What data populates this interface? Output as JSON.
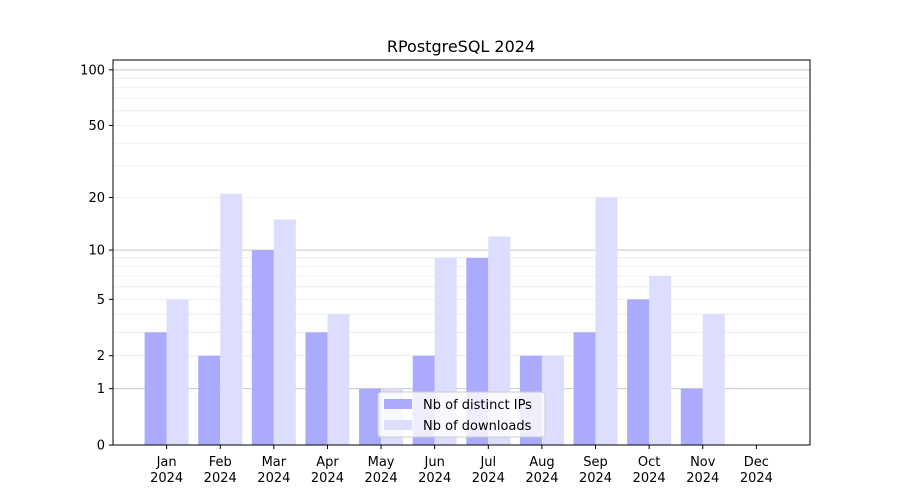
{
  "chart_data": {
    "type": "bar",
    "title": "RPostgreSQL 2024",
    "xlabel": "",
    "ylabel": "",
    "yscale": "log10(1+y)",
    "ylim": [
      0,
      113
    ],
    "yticks": [
      0,
      1,
      2,
      5,
      10,
      20,
      50,
      100
    ],
    "categories": [
      "Jan\n2024",
      "Feb\n2024",
      "Mar\n2024",
      "Apr\n2024",
      "May\n2024",
      "Jun\n2024",
      "Jul\n2024",
      "Aug\n2024",
      "Sep\n2024",
      "Oct\n2024",
      "Nov\n2024",
      "Dec\n2024"
    ],
    "series": [
      {
        "name": "Nb of distinct IPs",
        "color": "#aaaaff",
        "values": [
          3,
          2,
          10,
          3,
          1,
          2,
          9,
          2,
          3,
          5,
          1,
          0
        ]
      },
      {
        "name": "Nb of downloads",
        "color": "#ddddff",
        "values": [
          5,
          21,
          15,
          4,
          1,
          9,
          12,
          2,
          20,
          7,
          4,
          0
        ]
      }
    ],
    "grid": true,
    "legend": "lower center"
  }
}
